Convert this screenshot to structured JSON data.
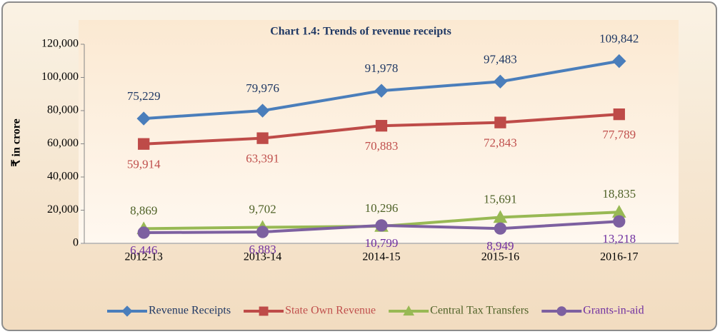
{
  "chart_data": {
    "type": "line",
    "title": "Chart 1.4: Trends of revenue receipts",
    "y_label": "₹ in crore",
    "categories": [
      "2012-13",
      "2013-14",
      "2014-15",
      "2015-16",
      "2016-17"
    ],
    "series": [
      {
        "name": "Revenue Receipts",
        "color": "#4a7ebb",
        "label_color": "#1f3864",
        "marker": "diamond",
        "values": [
          75229,
          79976,
          91978,
          97483,
          109842
        ],
        "value_labels": [
          "75,229",
          "79,976",
          "91,978",
          "97,483",
          "109,842"
        ]
      },
      {
        "name": "State Own Revenue",
        "color": "#be4b48",
        "label_color": "#c0504d",
        "marker": "square",
        "values": [
          59914,
          63391,
          70883,
          72843,
          77789
        ],
        "value_labels": [
          "59,914",
          "63,391",
          "70,883",
          "72,843",
          "77,789"
        ]
      },
      {
        "name": "Central Tax Transfers",
        "color": "#98b954",
        "label_color": "#4f6228",
        "marker": "triangle",
        "values": [
          8869,
          9702,
          10296,
          15691,
          18835
        ],
        "value_labels": [
          "8,869",
          "9,702",
          "10,296",
          "15,691",
          "18,835"
        ]
      },
      {
        "name": "Grants-in-aid",
        "color": "#7d60a0",
        "label_color": "#7030a0",
        "marker": "circle",
        "values": [
          6446,
          6883,
          10799,
          8949,
          13218
        ],
        "value_labels": [
          "6,446",
          "6,883",
          "10,799",
          "8,949",
          "13,218"
        ]
      }
    ],
    "ylim": [
      0,
      120000
    ],
    "yticks": [
      0,
      {
        "value": 20000,
        "label": "20,000"
      },
      {
        "value": 40000,
        "label": "40,000"
      },
      {
        "value": 60000,
        "label": "60,000"
      },
      {
        "value": 80000,
        "label": "80,000"
      },
      {
        "value": 100000,
        "label": "100,000"
      },
      {
        "value": 120000,
        "label": "120,000"
      }
    ],
    "grid": false,
    "legend": "bottom"
  }
}
